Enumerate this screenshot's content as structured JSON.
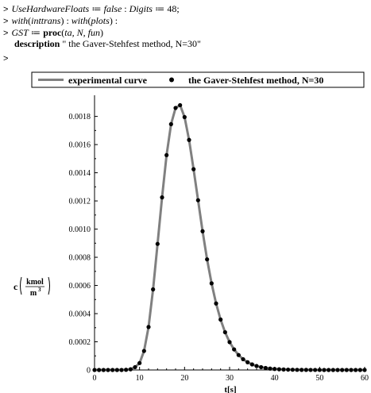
{
  "worksheet": {
    "prompt": ">",
    "lines": [
      {
        "segments": [
          {
            "t": "UseHardwareFloats",
            "s": "i"
          },
          {
            "t": " ≔ ",
            "s": ""
          },
          {
            "t": "false",
            "s": "i"
          },
          {
            "t": " : ",
            "s": ""
          },
          {
            "t": "Digits",
            "s": "i"
          },
          {
            "t": " ≔ 48;",
            "s": ""
          }
        ]
      },
      {
        "segments": [
          {
            "t": "with",
            "s": "i"
          },
          {
            "t": "(",
            "s": ""
          },
          {
            "t": "inttrans",
            "s": "i"
          },
          {
            "t": ") : ",
            "s": ""
          },
          {
            "t": "with",
            "s": "i"
          },
          {
            "t": "(",
            "s": ""
          },
          {
            "t": "plots",
            "s": "i"
          },
          {
            "t": ") :",
            "s": ""
          }
        ]
      },
      {
        "segments": [
          {
            "t": "GST",
            "s": "i"
          },
          {
            "t": " ≔ ",
            "s": ""
          },
          {
            "t": "proc",
            "s": "b"
          },
          {
            "t": "(",
            "s": ""
          },
          {
            "t": "ta, N, fun",
            "s": "i"
          },
          {
            "t": ")",
            "s": ""
          }
        ]
      }
    ],
    "description_keyword": "description",
    "description_text": " \" the Gaver-Stehfest method, N=30\"",
    "empty_prompt": ">"
  },
  "chart_data": {
    "type": "line",
    "legend": {
      "position": "top",
      "entries": [
        "experimental curve",
        "the Gaver-Stehfest method, N=30"
      ]
    },
    "xlabel": "t[s]",
    "ylabel_prefix": "c",
    "ylabel_numerator": "kmol",
    "ylabel_denominator": "m",
    "ylabel_denominator_exp": "3",
    "xlim": [
      0,
      60
    ],
    "ylim": [
      0,
      0.00195
    ],
    "x_ticks": [
      0,
      10,
      20,
      30,
      40,
      50,
      60
    ],
    "x_tick_labels": [
      "0",
      "10",
      "20",
      "30",
      "40",
      "50",
      "60"
    ],
    "y_ticks": [
      0,
      0.0002,
      0.0004,
      0.0006,
      0.0008,
      0.001,
      0.0012,
      0.0014,
      0.0016,
      0.0018
    ],
    "y_tick_labels": [
      "0",
      "0.0002",
      "0.0004",
      "0.0006",
      "0.0008",
      "0.0010",
      "0.0012",
      "0.0014",
      "0.0016",
      "0.0018"
    ],
    "grid": false,
    "series": [
      {
        "style": "line",
        "color": "#808080"
      },
      {
        "style": "points",
        "color": "#000000",
        "x": [
          0,
          1,
          2,
          3,
          4,
          5,
          6,
          7,
          8,
          9,
          10,
          11,
          12,
          13,
          14,
          15,
          16,
          17,
          18,
          19,
          20,
          21,
          22,
          23,
          24,
          25,
          26,
          27,
          28,
          29,
          30,
          31,
          32,
          33,
          34,
          35,
          36,
          37,
          38,
          39,
          40,
          41,
          42,
          43,
          44,
          45,
          46,
          47,
          48,
          49,
          50,
          51,
          52,
          53,
          54,
          55,
          56,
          57,
          58,
          59,
          60
        ],
        "y": [
          0,
          0,
          0,
          0,
          0,
          0,
          0,
          1.5e-06,
          5e-06,
          2e-05,
          4.9e-05,
          0.000135,
          0.000305,
          0.000572,
          0.000895,
          0.001225,
          0.001525,
          0.001745,
          0.00186,
          0.00188,
          0.001795,
          0.001633,
          0.001425,
          0.001205,
          0.000985,
          0.000785,
          0.000615,
          0.000472,
          0.000358,
          0.000268,
          0.000198,
          0.000146,
          0.000106,
          7.65e-05,
          5.5e-05,
          3.95e-05,
          2.8e-05,
          1.99e-05,
          1.41e-05,
          1e-05,
          7.1e-06,
          5e-06,
          3.5e-06,
          2.5e-06,
          1.7e-06,
          1.2e-06,
          8e-07,
          6e-07,
          4e-07,
          3e-07,
          2e-07,
          1e-07,
          1e-07,
          0,
          0,
          0,
          0,
          0,
          0,
          0,
          0
        ]
      }
    ]
  }
}
